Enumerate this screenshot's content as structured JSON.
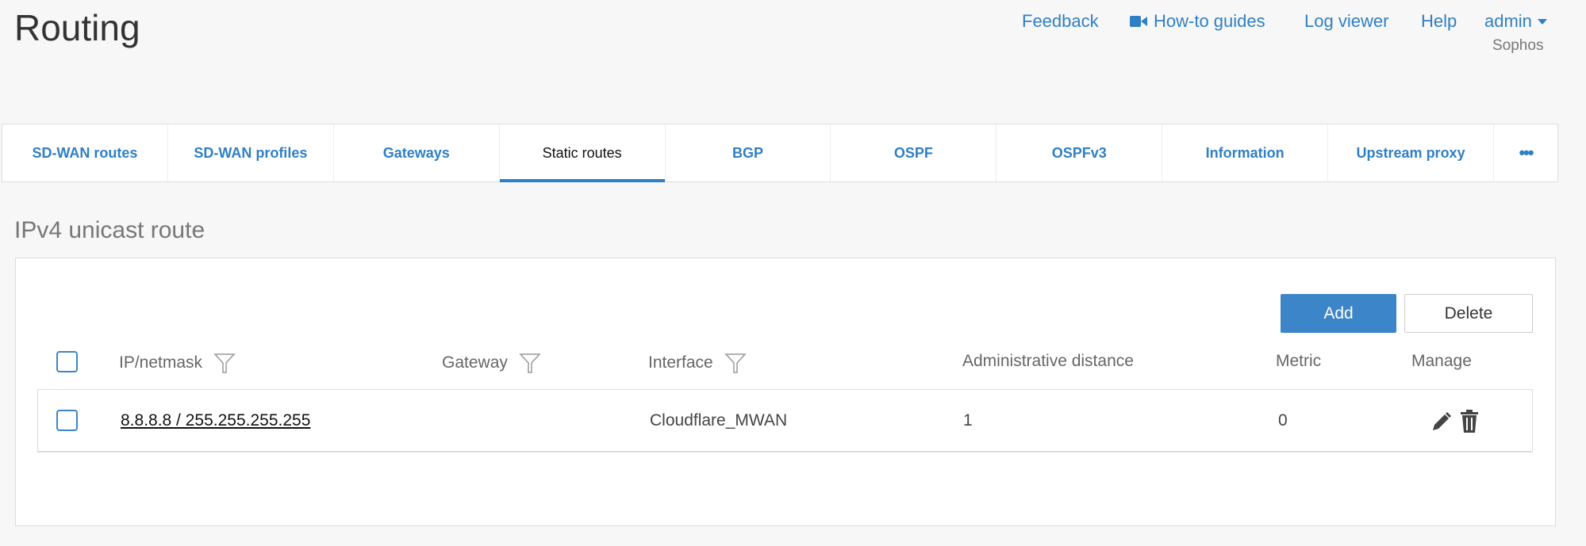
{
  "header": {
    "title": "Routing",
    "links": {
      "feedback": "Feedback",
      "howto": "How-to guides",
      "logviewer": "Log viewer",
      "help": "Help",
      "admin": "admin"
    },
    "org": "Sophos"
  },
  "tabs": [
    "SD-WAN routes",
    "SD-WAN profiles",
    "Gateways",
    "Static routes",
    "BGP",
    "OSPF",
    "OSPFv3",
    "Information",
    "Upstream proxy"
  ],
  "active_tab": "Static routes",
  "more_label": "•••",
  "section": {
    "title": "IPv4 unicast route",
    "add": "Add",
    "delete": "Delete"
  },
  "table": {
    "columns": {
      "ip": "IP/netmask",
      "gateway": "Gateway",
      "interface": "Interface",
      "admin_distance": "Administrative distance",
      "metric": "Metric",
      "manage": "Manage"
    },
    "rows": [
      {
        "ip": "8.8.8.8 / 255.255.255.255",
        "gateway": "",
        "interface": "Cloudflare_MWAN",
        "admin_distance": "1",
        "metric": "0"
      }
    ]
  },
  "colors": {
    "accent": "#3c85c8",
    "link": "#2f7fc4"
  }
}
